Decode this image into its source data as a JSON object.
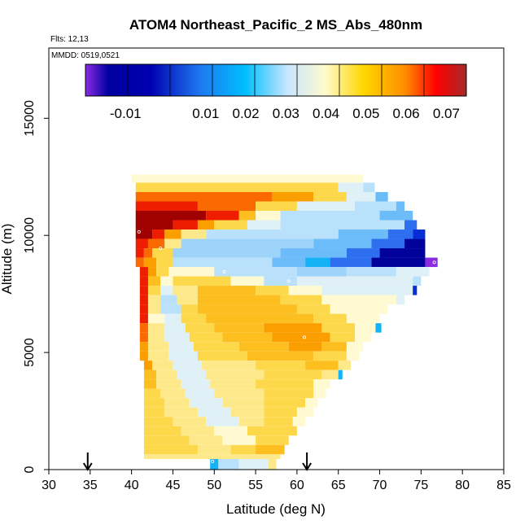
{
  "chart_data": {
    "type": "heatmap",
    "title": "ATOM4 Northeast_Pacific_2 MS_Abs_480nm",
    "flights_note": "Flts: 12,13",
    "dates_note": "MMDD: 0519,0521",
    "xlabel": "Latitude (deg N)",
    "ylabel": "Altitude (m)",
    "xlim": [
      30,
      85
    ],
    "ylim": [
      0,
      18000
    ],
    "xticks": [
      "30",
      "35",
      "40",
      "45",
      "50",
      "55",
      "60",
      "65",
      "70",
      "75",
      "80",
      "85"
    ],
    "yticks": [
      "0",
      "5000",
      "10000",
      "15000"
    ],
    "grid": false,
    "colorbar": {
      "placement": "top-inside",
      "range": [
        -0.02,
        0.075
      ],
      "ticks": [
        "-0.01",
        "0.01",
        "0.02",
        "0.03",
        "0.04",
        "0.05",
        "0.06",
        "0.07"
      ],
      "colors": [
        "#8a2be2",
        "#0000a0",
        "#1e5ae0",
        "#00bfff",
        "#c8e6ff",
        "#fffacd",
        "#ffd700",
        "#ff8c00",
        "#ff0000",
        "#a52a2a"
      ]
    },
    "flight_markers_latitude": [
      34.7,
      61.2
    ],
    "cell_colors": {
      "vdark": "#a00000",
      "red": "#ef1d00",
      "redorange": "#fb6a00",
      "orange": "#fb9f00",
      "lorange": "#fcbf1f",
      "ylw": "#fdd84b",
      "ylwl": "#fde98a",
      "cream": "#fffad2",
      "paleblue": "#dff1f7",
      "lblue": "#b9e1fb",
      "lblue2": "#9ed3fa",
      "mblue": "#6cbcf9",
      "cyan": "#15b3f5",
      "blue": "#2e6ff0",
      "dblue": "#082ed3",
      "navy": "#00029b",
      "purple": "#8a2be2"
    },
    "cells": [
      [
        40,
        12250,
        68,
        12600,
        "cream"
      ],
      [
        40.5,
        11850,
        65,
        12250,
        "ylw"
      ],
      [
        65,
        11850,
        68,
        12250,
        "paleblue"
      ],
      [
        68,
        11850,
        69.4,
        12250,
        "lblue"
      ],
      [
        40.5,
        11450,
        57,
        11850,
        "redorange"
      ],
      [
        57,
        11450,
        62,
        11850,
        "orange"
      ],
      [
        62,
        11450,
        66,
        11850,
        "ylw"
      ],
      [
        66,
        11450,
        69.5,
        11850,
        "paleblue"
      ],
      [
        69.5,
        11450,
        71,
        11850,
        "mblue"
      ],
      [
        40.5,
        11050,
        48,
        11450,
        "red"
      ],
      [
        48,
        11050,
        55,
        11450,
        "redorange"
      ],
      [
        55,
        11050,
        60,
        11450,
        "ylw"
      ],
      [
        60,
        11050,
        67,
        11450,
        "paleblue"
      ],
      [
        67,
        11050,
        72,
        11450,
        "lblue"
      ],
      [
        72,
        11050,
        73,
        11450,
        "mblue"
      ],
      [
        40.5,
        10650,
        49,
        11050,
        "vdark"
      ],
      [
        49,
        10650,
        53,
        11050,
        "red"
      ],
      [
        53,
        10650,
        55,
        11050,
        "lorange"
      ],
      [
        55,
        10650,
        58,
        11050,
        "cream"
      ],
      [
        58,
        10650,
        70,
        11050,
        "lblue"
      ],
      [
        70,
        10650,
        74,
        11050,
        "mblue"
      ],
      [
        40.5,
        10250,
        45,
        10650,
        "vdark"
      ],
      [
        45,
        10250,
        48,
        10650,
        "red"
      ],
      [
        48,
        10250,
        50,
        10650,
        "orange"
      ],
      [
        50,
        10250,
        54,
        10650,
        "ylw"
      ],
      [
        54,
        10250,
        58,
        10650,
        "paleblue"
      ],
      [
        58,
        10250,
        73,
        10650,
        "lblue"
      ],
      [
        73,
        10250,
        74.5,
        10650,
        "blue"
      ],
      [
        40.5,
        9850,
        42.5,
        10250,
        "vdark"
      ],
      [
        42.5,
        9850,
        44,
        10250,
        "red"
      ],
      [
        44,
        9850,
        46,
        10250,
        "orange"
      ],
      [
        46,
        9850,
        49,
        10250,
        "ylwl"
      ],
      [
        49,
        9850,
        65,
        10250,
        "lblue"
      ],
      [
        65,
        9850,
        71,
        10250,
        "mblue"
      ],
      [
        71,
        9850,
        74,
        10250,
        "blue"
      ],
      [
        74,
        9850,
        75.5,
        10250,
        "dblue"
      ],
      [
        40.5,
        9450,
        42,
        9850,
        "red"
      ],
      [
        42,
        9450,
        44,
        9850,
        "redorange"
      ],
      [
        44,
        9450,
        46,
        9850,
        "ylwl"
      ],
      [
        46,
        9450,
        62,
        9850,
        "lblue2"
      ],
      [
        62,
        9450,
        69,
        9850,
        "mblue"
      ],
      [
        69,
        9450,
        73,
        9850,
        "blue"
      ],
      [
        73,
        9450,
        75.5,
        9850,
        "navy"
      ],
      [
        40.5,
        9050,
        41.5,
        9450,
        "red"
      ],
      [
        41.5,
        9050,
        42.5,
        9450,
        "redorange"
      ],
      [
        42.5,
        9050,
        45,
        9450,
        "ylw"
      ],
      [
        45,
        9050,
        58,
        9450,
        "lblue2"
      ],
      [
        58,
        9050,
        66,
        9450,
        "mblue"
      ],
      [
        66,
        9050,
        70,
        9450,
        "blue"
      ],
      [
        70,
        9050,
        75.5,
        9450,
        "navy"
      ],
      [
        40.5,
        8650,
        41.5,
        9050,
        "redorange"
      ],
      [
        41.5,
        8650,
        43,
        9050,
        "orange"
      ],
      [
        43,
        8650,
        45,
        9050,
        "ylw"
      ],
      [
        45,
        8650,
        57,
        9050,
        "lblue"
      ],
      [
        57,
        8650,
        61,
        9050,
        "mblue"
      ],
      [
        61,
        8650,
        64,
        9050,
        "cyan"
      ],
      [
        64,
        8650,
        69,
        9050,
        "blue"
      ],
      [
        69,
        8650,
        75.5,
        9050,
        "navy"
      ],
      [
        75.5,
        8650,
        77,
        9050,
        "purple"
      ],
      [
        41,
        8250,
        42,
        8650,
        "red"
      ],
      [
        42,
        8250,
        43,
        8650,
        "orange"
      ],
      [
        43,
        8250,
        44.5,
        8650,
        "ylw"
      ],
      [
        44.5,
        8250,
        50,
        8650,
        "cream"
      ],
      [
        50,
        8250,
        60,
        8650,
        "lblue"
      ],
      [
        60,
        8250,
        66,
        8650,
        "lblue2"
      ],
      [
        66,
        8250,
        72,
        8650,
        "lblue"
      ],
      [
        72,
        8250,
        76,
        8650,
        "paleblue"
      ],
      [
        41,
        7850,
        42,
        8250,
        "red"
      ],
      [
        42,
        7850,
        43.5,
        8250,
        "lorange"
      ],
      [
        43.5,
        7850,
        45,
        8250,
        "cream"
      ],
      [
        45,
        7850,
        52,
        8250,
        "ylw"
      ],
      [
        52,
        7850,
        56,
        8250,
        "cream"
      ],
      [
        56,
        7850,
        60,
        8250,
        "lblue"
      ],
      [
        60,
        7850,
        74,
        8250,
        "paleblue"
      ],
      [
        74,
        7850,
        75,
        8250,
        "lblue"
      ],
      [
        41,
        7450,
        42,
        7850,
        "red"
      ],
      [
        42,
        7450,
        43.5,
        7850,
        "ylw"
      ],
      [
        43.5,
        7450,
        45,
        7850,
        "paleblue"
      ],
      [
        45,
        7450,
        48,
        7850,
        "ylwl"
      ],
      [
        48,
        7450,
        55,
        7850,
        "lorange"
      ],
      [
        55,
        7450,
        59,
        7850,
        "ylw"
      ],
      [
        59,
        7450,
        63,
        7850,
        "cream"
      ],
      [
        63,
        7450,
        74,
        7850,
        "paleblue"
      ],
      [
        74,
        7450,
        74.5,
        7850,
        "dblue"
      ],
      [
        41,
        7050,
        42,
        7450,
        "red"
      ],
      [
        42,
        7050,
        43.5,
        7450,
        "ylwl"
      ],
      [
        43.5,
        7050,
        45.5,
        7450,
        "lblue"
      ],
      [
        45.5,
        7050,
        48,
        7450,
        "ylwl"
      ],
      [
        48,
        7050,
        58,
        7450,
        "lorange"
      ],
      [
        58,
        7050,
        63,
        7450,
        "ylw"
      ],
      [
        63,
        7050,
        72,
        7450,
        "cream"
      ],
      [
        72,
        7050,
        73,
        7450,
        "paleblue"
      ],
      [
        41,
        6650,
        42,
        7050,
        "red"
      ],
      [
        42,
        6650,
        43.5,
        7050,
        "ylwl"
      ],
      [
        43.5,
        6650,
        46,
        7050,
        "lblue"
      ],
      [
        46,
        6650,
        48,
        7050,
        "ylw"
      ],
      [
        48,
        6650,
        60,
        7050,
        "lorange"
      ],
      [
        60,
        6650,
        64,
        7050,
        "ylw"
      ],
      [
        64,
        6650,
        71,
        7050,
        "cream"
      ],
      [
        41,
        6250,
        42,
        6650,
        "red"
      ],
      [
        42,
        6250,
        44,
        6650,
        "cream"
      ],
      [
        44,
        6250,
        46,
        6650,
        "paleblue"
      ],
      [
        46,
        6250,
        49,
        6650,
        "ylw"
      ],
      [
        49,
        6250,
        62,
        6650,
        "lorange"
      ],
      [
        62,
        6250,
        66,
        6650,
        "ylw"
      ],
      [
        66,
        6250,
        70,
        6650,
        "cream"
      ],
      [
        41,
        5850,
        42,
        6250,
        "redorange"
      ],
      [
        42,
        5850,
        44,
        6250,
        "ylwl"
      ],
      [
        44,
        5850,
        46.5,
        6250,
        "paleblue"
      ],
      [
        46.5,
        5850,
        50,
        6250,
        "ylw"
      ],
      [
        50,
        5850,
        56,
        6250,
        "lorange"
      ],
      [
        56,
        5850,
        63,
        6250,
        "orange"
      ],
      [
        63,
        5850,
        67,
        6250,
        "ylw"
      ],
      [
        67,
        5850,
        69.5,
        6250,
        "cream"
      ],
      [
        69.5,
        5850,
        70.2,
        6250,
        "cyan"
      ],
      [
        41,
        5450,
        42,
        5850,
        "redorange"
      ],
      [
        42,
        5450,
        44,
        5850,
        "ylwl"
      ],
      [
        44,
        5450,
        47,
        5850,
        "paleblue"
      ],
      [
        47,
        5450,
        51,
        5850,
        "ylw"
      ],
      [
        51,
        5450,
        57,
        5850,
        "lorange"
      ],
      [
        57,
        5450,
        64,
        5850,
        "orange"
      ],
      [
        64,
        5450,
        67,
        5850,
        "ylw"
      ],
      [
        67,
        5450,
        69,
        5850,
        "cream"
      ],
      [
        41,
        5050,
        42,
        5450,
        "orange"
      ],
      [
        42,
        5050,
        44.5,
        5450,
        "ylwl"
      ],
      [
        44.5,
        5050,
        47.5,
        5450,
        "paleblue"
      ],
      [
        47.5,
        5050,
        53,
        5450,
        "ylw"
      ],
      [
        53,
        5050,
        59,
        5450,
        "lorange"
      ],
      [
        59,
        5050,
        63,
        5450,
        "orange"
      ],
      [
        63,
        5050,
        66,
        5450,
        "lorange"
      ],
      [
        66,
        5050,
        68,
        5450,
        "cream"
      ],
      [
        41,
        4650,
        42,
        5050,
        "orange"
      ],
      [
        42,
        4650,
        44.5,
        5050,
        "ylwl"
      ],
      [
        44.5,
        4650,
        48,
        5050,
        "paleblue"
      ],
      [
        48,
        4650,
        54,
        5050,
        "ylw"
      ],
      [
        54,
        4650,
        62,
        5050,
        "lorange"
      ],
      [
        62,
        4650,
        66,
        5050,
        "ylw"
      ],
      [
        66,
        4650,
        67.5,
        5050,
        "cream"
      ],
      [
        41.5,
        4250,
        42.5,
        4650,
        "orange"
      ],
      [
        42.5,
        4250,
        45,
        4650,
        "ylwl"
      ],
      [
        45,
        4250,
        48.5,
        4650,
        "paleblue"
      ],
      [
        48.5,
        4250,
        55,
        4650,
        "ylwl"
      ],
      [
        55,
        4250,
        61,
        4650,
        "ylw"
      ],
      [
        61,
        4250,
        65,
        4650,
        "lorange"
      ],
      [
        65,
        4250,
        66.5,
        4650,
        "ylwl"
      ],
      [
        41.5,
        3850,
        43,
        4250,
        "lorange"
      ],
      [
        43,
        3850,
        45.5,
        4250,
        "ylwl"
      ],
      [
        45.5,
        3850,
        49,
        4250,
        "paleblue"
      ],
      [
        49,
        3850,
        56,
        4250,
        "ylwl"
      ],
      [
        56,
        3850,
        63,
        4250,
        "ylw"
      ],
      [
        63,
        3850,
        65,
        4250,
        "ylwl"
      ],
      [
        65,
        3850,
        65.5,
        4250,
        "cyan"
      ],
      [
        41.5,
        3450,
        43,
        3850,
        "lorange"
      ],
      [
        43,
        3450,
        46,
        3850,
        "ylwl"
      ],
      [
        46,
        3450,
        49.5,
        3850,
        "paleblue"
      ],
      [
        49.5,
        3450,
        55,
        3850,
        "ylwl"
      ],
      [
        55,
        3450,
        62,
        3850,
        "ylw"
      ],
      [
        62,
        3450,
        64,
        3850,
        "cream"
      ],
      [
        41.5,
        3050,
        43.5,
        3450,
        "ylw"
      ],
      [
        43.5,
        3050,
        46.5,
        3450,
        "ylwl"
      ],
      [
        46.5,
        3050,
        50,
        3450,
        "paleblue"
      ],
      [
        50,
        3050,
        56,
        3450,
        "ylwl"
      ],
      [
        56,
        3050,
        62,
        3450,
        "ylw"
      ],
      [
        62,
        3050,
        63.5,
        3450,
        "cream"
      ],
      [
        41.5,
        2650,
        44,
        3050,
        "ylw"
      ],
      [
        44,
        2650,
        47,
        3050,
        "ylwl"
      ],
      [
        47,
        2650,
        51,
        3050,
        "paleblue"
      ],
      [
        51,
        2650,
        56,
        3050,
        "ylwl"
      ],
      [
        56,
        2650,
        61,
        3050,
        "ylw"
      ],
      [
        61,
        2650,
        62.5,
        3050,
        "cream"
      ],
      [
        41.5,
        2250,
        44,
        2650,
        "ylw"
      ],
      [
        44,
        2250,
        48,
        2650,
        "ylwl"
      ],
      [
        48,
        2250,
        52,
        2650,
        "paleblue"
      ],
      [
        52,
        2250,
        56,
        2650,
        "ylwl"
      ],
      [
        56,
        2250,
        60,
        2650,
        "ylw"
      ],
      [
        60,
        2250,
        62,
        2650,
        "cream"
      ],
      [
        41.5,
        1850,
        45,
        2250,
        "ylw"
      ],
      [
        45,
        1850,
        49,
        2250,
        "ylwl"
      ],
      [
        49,
        1850,
        53,
        2250,
        "paleblue"
      ],
      [
        53,
        1850,
        56,
        2250,
        "ylwl"
      ],
      [
        56,
        1850,
        59.5,
        2250,
        "ylw"
      ],
      [
        59.5,
        1850,
        61,
        2250,
        "cream"
      ],
      [
        41.5,
        1450,
        46,
        1850,
        "ylw"
      ],
      [
        46,
        1450,
        50,
        1850,
        "ylwl"
      ],
      [
        50,
        1450,
        54,
        1850,
        "cream"
      ],
      [
        54,
        1450,
        60,
        1850,
        "ylw"
      ],
      [
        41.5,
        1050,
        47,
        1450,
        "ylw"
      ],
      [
        47,
        1050,
        51,
        1450,
        "ylwl"
      ],
      [
        51,
        1050,
        55,
        1450,
        "cream"
      ],
      [
        55,
        1050,
        59,
        1450,
        "ylw"
      ],
      [
        41.5,
        650,
        48,
        1050,
        "ylw"
      ],
      [
        48,
        650,
        52,
        1050,
        "ylwl"
      ],
      [
        52,
        650,
        55,
        1050,
        "ylw"
      ],
      [
        55,
        650,
        58.5,
        1050,
        "lorange"
      ],
      [
        41.5,
        450,
        58,
        650,
        "ylwl"
      ],
      [
        49.5,
        0,
        50.5,
        450,
        "cyan"
      ],
      [
        50.5,
        0,
        53,
        450,
        "lblue"
      ],
      [
        53,
        0,
        56.5,
        450,
        "paleblue"
      ],
      [
        56.5,
        0,
        57.5,
        450,
        "ylwl"
      ]
    ],
    "sample_points": [
      [
        40.9,
        10150
      ],
      [
        43.5,
        9450
      ],
      [
        51.2,
        8450
      ],
      [
        59,
        8050
      ],
      [
        76.6,
        8850
      ],
      [
        60.9,
        5650
      ],
      [
        49.8,
        350
      ]
    ]
  }
}
